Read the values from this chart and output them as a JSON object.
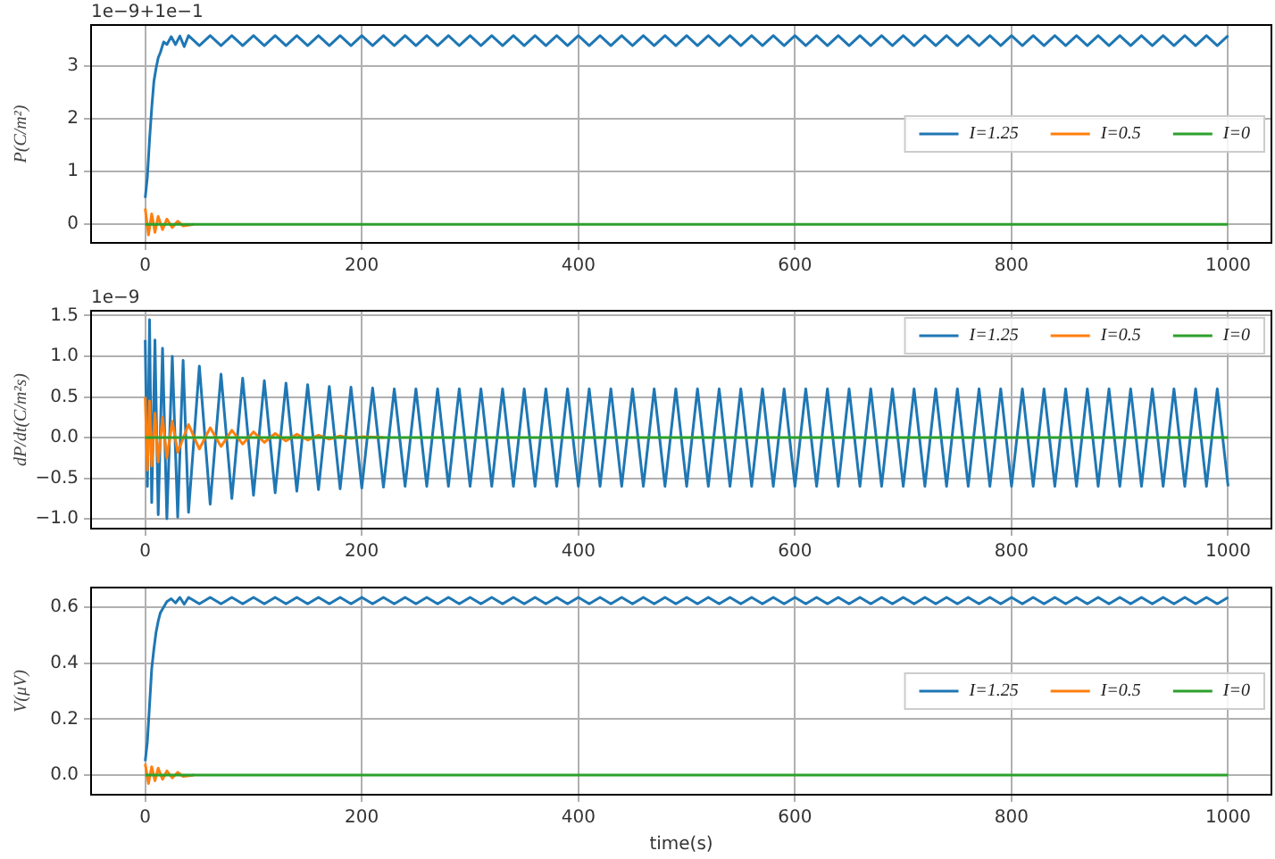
{
  "chart_data": [
    {
      "type": "line",
      "ylabel": "P(C/m²)",
      "annotations": [
        "1e−9+1e−1"
      ],
      "xlim": [
        -50,
        1040
      ],
      "xticks": [
        0,
        200,
        400,
        600,
        800,
        1000
      ],
      "ylim": [
        -0.35,
        3.77
      ],
      "yticks": [
        0,
        1,
        2,
        3
      ],
      "grid": true,
      "legend": "right",
      "series": [
        {
          "name": "I=1.25",
          "color": "#1f77b4",
          "x": [
            0,
            2,
            4,
            6,
            8,
            10,
            12,
            14,
            17,
            20,
            24,
            28,
            32,
            36,
            40,
            50,
            60,
            70,
            80,
            90,
            100,
            110,
            120,
            130,
            140,
            150,
            160,
            170,
            180,
            190,
            200,
            210,
            220,
            230,
            240,
            250,
            260,
            270,
            280,
            290,
            300,
            310,
            320,
            330,
            340,
            350,
            360,
            370,
            380,
            390,
            400,
            410,
            420,
            430,
            440,
            450,
            460,
            470,
            480,
            490,
            500,
            510,
            520,
            530,
            540,
            550,
            560,
            570,
            580,
            590,
            600,
            610,
            620,
            630,
            640,
            650,
            660,
            670,
            680,
            690,
            700,
            710,
            720,
            730,
            740,
            750,
            760,
            770,
            780,
            790,
            800,
            810,
            820,
            830,
            840,
            850,
            860,
            870,
            880,
            890,
            900,
            910,
            920,
            930,
            940,
            950,
            960,
            970,
            980,
            990,
            1000
          ],
          "values": [
            0.5,
            0.9,
            1.6,
            2.2,
            2.7,
            2.95,
            3.15,
            3.25,
            3.45,
            3.4,
            3.55,
            3.4,
            3.56,
            3.36,
            3.57,
            3.38,
            3.57,
            3.38,
            3.57,
            3.38,
            3.57,
            3.38,
            3.57,
            3.38,
            3.57,
            3.38,
            3.57,
            3.38,
            3.57,
            3.38,
            3.57,
            3.38,
            3.57,
            3.38,
            3.57,
            3.38,
            3.57,
            3.38,
            3.57,
            3.38,
            3.57,
            3.38,
            3.57,
            3.38,
            3.57,
            3.38,
            3.57,
            3.38,
            3.57,
            3.38,
            3.57,
            3.38,
            3.57,
            3.38,
            3.57,
            3.38,
            3.57,
            3.38,
            3.57,
            3.38,
            3.57,
            3.38,
            3.57,
            3.38,
            3.57,
            3.38,
            3.57,
            3.38,
            3.57,
            3.38,
            3.57,
            3.38,
            3.57,
            3.38,
            3.57,
            3.38,
            3.57,
            3.38,
            3.57,
            3.38,
            3.57,
            3.38,
            3.57,
            3.38,
            3.57,
            3.38,
            3.57,
            3.38,
            3.57,
            3.38,
            3.57,
            3.38,
            3.57,
            3.38,
            3.57,
            3.38,
            3.57,
            3.38,
            3.57,
            3.38,
            3.57,
            3.38,
            3.57,
            3.38,
            3.57,
            3.38,
            3.57,
            3.38,
            3.57,
            3.38,
            3.57
          ]
        },
        {
          "name": "I=0.5",
          "color": "#ff7f0e",
          "x": [
            0,
            3,
            6,
            9,
            12,
            16,
            20,
            25,
            30,
            35,
            45
          ],
          "values": [
            0.3,
            -0.2,
            0.2,
            -0.15,
            0.15,
            -0.1,
            0.1,
            -0.06,
            0.06,
            -0.03,
            0
          ]
        },
        {
          "name": "I=0",
          "color": "#2ca02c",
          "x": [
            0,
            1000
          ],
          "values": [
            0,
            0
          ]
        }
      ]
    },
    {
      "type": "line",
      "ylabel": "dP/dt(C/m²s)",
      "annotations": [
        "1e−9"
      ],
      "xlim": [
        -50,
        1040
      ],
      "xticks": [
        0,
        200,
        400,
        600,
        800,
        1000
      ],
      "ylim": [
        -1.12,
        1.56
      ],
      "yticks": [
        {
          "value": -1,
          "label": "−1.0"
        },
        {
          "value": -0.5,
          "label": "−0.5"
        },
        {
          "value": 0,
          "label": "0.0"
        },
        0.5,
        {
          "value": 1,
          "label": "1.0"
        },
        1.5
      ],
      "grid": true,
      "legend": "top right",
      "series": [
        {
          "name": "I=1.25",
          "color": "#1f77b4",
          "x": [
            0,
            2,
            4,
            6,
            9,
            12,
            16,
            20,
            25,
            30,
            35,
            40,
            50,
            60,
            70,
            80,
            90,
            100,
            110,
            120,
            130,
            140,
            150,
            160,
            170,
            180,
            190,
            200,
            210,
            220,
            230,
            240,
            250,
            260,
            270,
            280,
            290,
            300,
            310,
            320,
            330,
            340,
            350,
            360,
            370,
            380,
            390,
            400,
            410,
            420,
            430,
            440,
            450,
            460,
            470,
            480,
            490,
            500,
            510,
            520,
            530,
            540,
            550,
            560,
            570,
            580,
            590,
            600,
            610,
            620,
            630,
            640,
            650,
            660,
            670,
            680,
            690,
            700,
            710,
            720,
            730,
            740,
            750,
            760,
            770,
            780,
            790,
            800,
            810,
            820,
            830,
            840,
            850,
            860,
            870,
            880,
            890,
            900,
            910,
            920,
            930,
            940,
            950,
            960,
            970,
            980,
            990,
            1000
          ],
          "values": [
            1.2,
            -0.6,
            1.45,
            -0.8,
            1.2,
            -0.95,
            1.1,
            -1.0,
            1.0,
            -0.98,
            0.95,
            -0.92,
            0.88,
            -0.82,
            0.78,
            -0.75,
            0.73,
            -0.71,
            0.7,
            -0.68,
            0.67,
            -0.66,
            0.65,
            -0.64,
            0.63,
            -0.63,
            0.62,
            -0.62,
            0.61,
            -0.61,
            0.6,
            -0.6,
            0.6,
            -0.6,
            0.6,
            -0.6,
            0.6,
            -0.6,
            0.6,
            -0.6,
            0.6,
            -0.6,
            0.6,
            -0.6,
            0.6,
            -0.6,
            0.6,
            -0.6,
            0.6,
            -0.6,
            0.6,
            -0.6,
            0.6,
            -0.6,
            0.6,
            -0.6,
            0.6,
            -0.6,
            0.6,
            -0.6,
            0.6,
            -0.6,
            0.6,
            -0.6,
            0.6,
            -0.6,
            0.6,
            -0.6,
            0.6,
            -0.6,
            0.6,
            -0.6,
            0.6,
            -0.6,
            0.6,
            -0.6,
            0.6,
            -0.6,
            0.6,
            -0.6,
            0.6,
            -0.6,
            0.6,
            -0.6,
            0.6,
            -0.6,
            0.6,
            -0.6,
            0.6,
            -0.6,
            0.6,
            -0.6,
            0.6,
            -0.6,
            0.6,
            -0.6,
            0.6,
            -0.6,
            0.6,
            -0.6,
            0.6,
            -0.6,
            0.6,
            -0.6,
            0.6,
            -0.6,
            0.6,
            -0.6
          ]
        },
        {
          "name": "I=0.5",
          "color": "#ff7f0e",
          "x": [
            0,
            2,
            4,
            6,
            9,
            12,
            16,
            20,
            25,
            30,
            40,
            50,
            60,
            70,
            80,
            90,
            100,
            110,
            120,
            130,
            140,
            150,
            160,
            170,
            180,
            190,
            200,
            220
          ],
          "values": [
            0.5,
            -0.4,
            0.45,
            -0.35,
            0.3,
            -0.3,
            0.25,
            -0.25,
            0.2,
            -0.18,
            0.16,
            -0.14,
            0.12,
            -0.11,
            0.09,
            -0.08,
            0.07,
            -0.06,
            0.05,
            -0.04,
            0.04,
            -0.03,
            0.03,
            -0.02,
            0.02,
            -0.01,
            0.01,
            0
          ]
        },
        {
          "name": "I=0",
          "color": "#2ca02c",
          "x": [
            0,
            1000
          ],
          "values": [
            0,
            0
          ]
        }
      ]
    },
    {
      "type": "line",
      "xlabel": "time(s)",
      "ylabel": "V(μV)",
      "xlim": [
        -50,
        1040
      ],
      "xticks": [
        0,
        200,
        400,
        600,
        800,
        1000
      ],
      "ylim": [
        -0.07,
        0.67
      ],
      "yticks": [
        {
          "value": 0,
          "label": "0.0"
        },
        0.2,
        0.4,
        0.6
      ],
      "grid": true,
      "legend": "right",
      "series": [
        {
          "name": "I=1.25",
          "color": "#1f77b4",
          "x": [
            0,
            2,
            4,
            6,
            8,
            10,
            12,
            14,
            17,
            20,
            24,
            28,
            32,
            36,
            40,
            50,
            60,
            70,
            80,
            90,
            100,
            110,
            120,
            130,
            140,
            150,
            160,
            170,
            180,
            190,
            200,
            210,
            220,
            230,
            240,
            250,
            260,
            270,
            280,
            290,
            300,
            310,
            320,
            330,
            340,
            350,
            360,
            370,
            380,
            390,
            400,
            410,
            420,
            430,
            440,
            450,
            460,
            470,
            480,
            490,
            500,
            510,
            520,
            530,
            540,
            550,
            560,
            570,
            580,
            590,
            600,
            610,
            620,
            630,
            640,
            650,
            660,
            670,
            680,
            690,
            700,
            710,
            720,
            730,
            740,
            750,
            760,
            770,
            780,
            790,
            800,
            810,
            820,
            830,
            840,
            850,
            860,
            870,
            880,
            890,
            900,
            910,
            920,
            930,
            940,
            950,
            960,
            970,
            980,
            990,
            1000
          ],
          "values": [
            0.05,
            0.12,
            0.25,
            0.38,
            0.45,
            0.51,
            0.55,
            0.58,
            0.6,
            0.62,
            0.63,
            0.615,
            0.635,
            0.61,
            0.635,
            0.612,
            0.635,
            0.612,
            0.635,
            0.612,
            0.635,
            0.612,
            0.635,
            0.612,
            0.635,
            0.612,
            0.635,
            0.612,
            0.635,
            0.612,
            0.635,
            0.612,
            0.635,
            0.612,
            0.635,
            0.612,
            0.635,
            0.612,
            0.635,
            0.612,
            0.635,
            0.612,
            0.635,
            0.612,
            0.635,
            0.612,
            0.635,
            0.612,
            0.635,
            0.612,
            0.635,
            0.612,
            0.635,
            0.612,
            0.635,
            0.612,
            0.635,
            0.612,
            0.635,
            0.612,
            0.635,
            0.612,
            0.635,
            0.612,
            0.635,
            0.612,
            0.635,
            0.612,
            0.635,
            0.612,
            0.635,
            0.612,
            0.635,
            0.612,
            0.635,
            0.612,
            0.635,
            0.612,
            0.635,
            0.612,
            0.635,
            0.612,
            0.635,
            0.612,
            0.635,
            0.612,
            0.635,
            0.612,
            0.635,
            0.612,
            0.635,
            0.612,
            0.635,
            0.612,
            0.635,
            0.612,
            0.635,
            0.612,
            0.635,
            0.612,
            0.635,
            0.612,
            0.635,
            0.612,
            0.635,
            0.612,
            0.635,
            0.612,
            0.635,
            0.612,
            0.635
          ]
        },
        {
          "name": "I=0.5",
          "color": "#ff7f0e",
          "x": [
            0,
            3,
            6,
            9,
            12,
            16,
            20,
            25,
            30,
            35,
            45
          ],
          "values": [
            0.04,
            -0.03,
            0.03,
            -0.02,
            0.025,
            -0.015,
            0.015,
            -0.01,
            0.01,
            -0.005,
            0
          ]
        },
        {
          "name": "I=0",
          "color": "#2ca02c",
          "x": [
            0,
            1000
          ],
          "values": [
            0,
            0
          ]
        }
      ]
    }
  ]
}
